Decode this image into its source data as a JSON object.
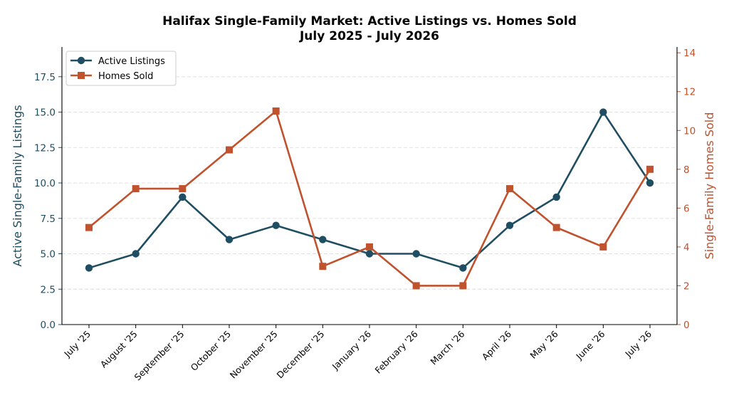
{
  "chart_data": {
    "type": "line",
    "title_line1": "Halifax Single-Family Market: Active Listings vs. Homes Sold",
    "title_line2": "July 2025 - July 2026",
    "categories": [
      "July '25",
      "August '25",
      "September '25",
      "October '25",
      "November '25",
      "December '25",
      "January '26",
      "February '26",
      "March '26",
      "April '26",
      "May '26",
      "June '26",
      "July '26"
    ],
    "series": [
      {
        "name": "Active Listings",
        "axis": "left",
        "marker": "circle",
        "color": "#1f4e63",
        "values": [
          4,
          5,
          9,
          6,
          7,
          6,
          5,
          5,
          4,
          7,
          9,
          15,
          10
        ]
      },
      {
        "name": "Homes Sold",
        "axis": "right",
        "marker": "square",
        "color": "#c0522d",
        "values": [
          5,
          7,
          7,
          9,
          11,
          3,
          4,
          2,
          2,
          7,
          5,
          4,
          8
        ]
      }
    ],
    "ylabel_left": "Active Single-Family Listings",
    "ylabel_right": "Single-Family Homes Sold",
    "ylim_left": [
      0,
      19.6
    ],
    "ylim_right": [
      0,
      14.3
    ],
    "yticks_left": [
      "0.0",
      "2.5",
      "5.0",
      "7.5",
      "10.0",
      "12.5",
      "15.0",
      "17.5"
    ],
    "yticks_right": [
      "0",
      "2",
      "4",
      "6",
      "8",
      "10",
      "12",
      "14"
    ],
    "grid": true,
    "legend_position": "top-left"
  }
}
